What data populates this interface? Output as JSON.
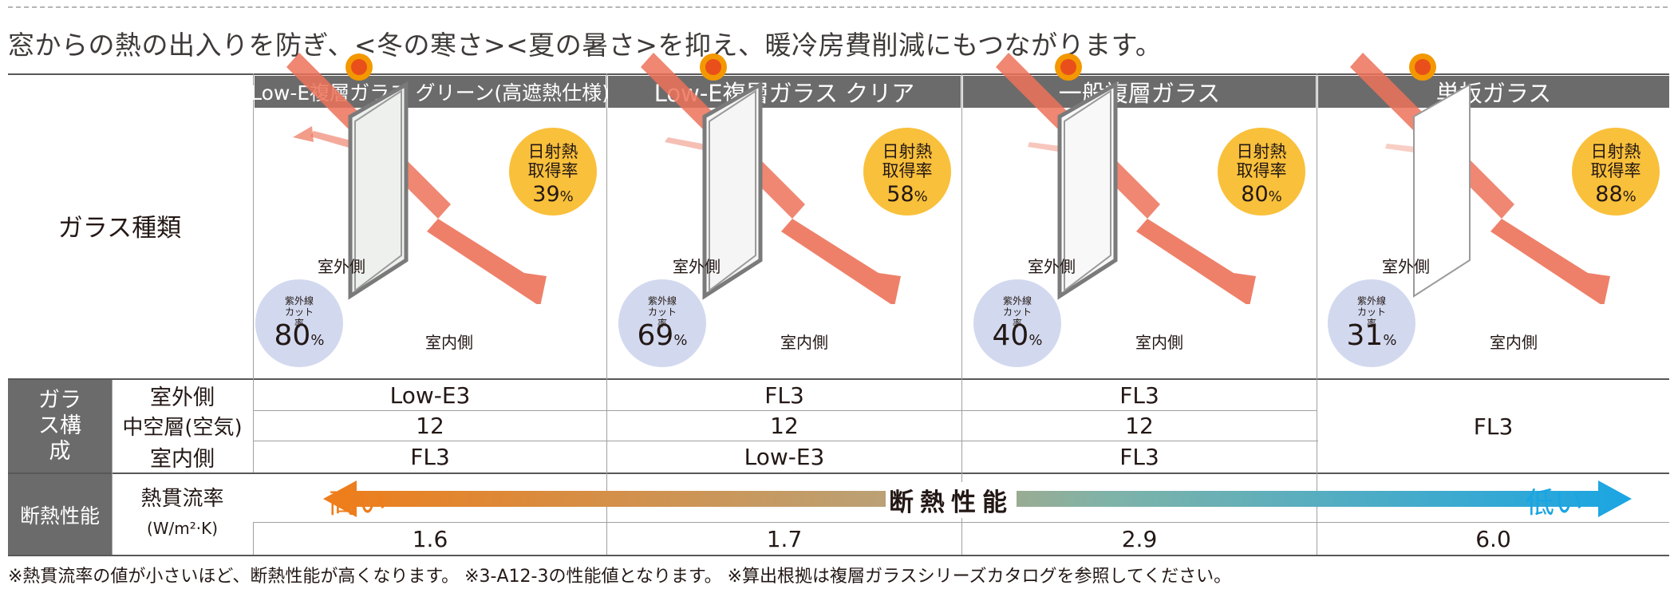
{
  "intro_text": "窓からの熱の出入りを防ぎ、<冬の寒さ><夏の暑さ>を抑え、暖冷房費削減にもつながります。",
  "row_labels": {
    "glass_type": "ガラス種類",
    "composition_group": "ガラス構成",
    "outdoor_side": "室外側",
    "air_layer": "中空層(空気)",
    "indoor_side": "室内側",
    "insulation_group": "断熱性能",
    "u_value": "熱貫流率",
    "u_value_unit": "(W/m²·K)"
  },
  "columns": [
    {
      "header": "Low-E複層ガラス グリーン(高遮熱仕様)",
      "solar_label": "日射熱取得率",
      "solar_value": "39",
      "uv_label": "紫外線カット率",
      "uv_value": "80",
      "outdoor_label": "室外側",
      "indoor_label": "室内側",
      "outdoor_glass": "Low-E3",
      "air_layer": "12",
      "indoor_glass": "FL3",
      "u_value": "1.6"
    },
    {
      "header": "Low-E複層ガラス クリア",
      "solar_label": "日射熱取得率",
      "solar_value": "58",
      "uv_label": "紫外線カット率",
      "uv_value": "69",
      "outdoor_label": "室外側",
      "indoor_label": "室内側",
      "outdoor_glass": "FL3",
      "air_layer": "12",
      "indoor_glass": "Low-E3",
      "u_value": "1.7"
    },
    {
      "header": "一般複層ガラス",
      "solar_label": "日射熱取得率",
      "solar_value": "80",
      "uv_label": "紫外線カット率",
      "uv_value": "40",
      "outdoor_label": "室外側",
      "indoor_label": "室内側",
      "outdoor_glass": "FL3",
      "air_layer": "12",
      "indoor_glass": "FL3",
      "u_value": "2.9"
    },
    {
      "header": "単板ガラス",
      "solar_label": "日射熱取得率",
      "solar_value": "88",
      "uv_label": "紫外線カット率",
      "uv_value": "31",
      "outdoor_label": "室外側",
      "indoor_label": "室内側",
      "single_glass": "FL3",
      "u_value": "6.0"
    }
  ],
  "percent_sign": "%",
  "arrow": {
    "high": "高い",
    "low": "低い",
    "title": "断熱性能",
    "color_high": "#ee7d1a",
    "color_low": "#1aa5e3"
  },
  "colors": {
    "header_bg": "#6b6b6b",
    "solar_badge": "#f9c03b",
    "uv_badge": "#d2d9ef",
    "ray": "#ec7259",
    "sun": "#f39800"
  },
  "footnote": "※熱貫流率の値が小さいほど、断熱性能が高くなります。 ※3-A12-3の性能値となります。 ※算出根拠は複層ガラスシリーズカタログを参照してください。"
}
